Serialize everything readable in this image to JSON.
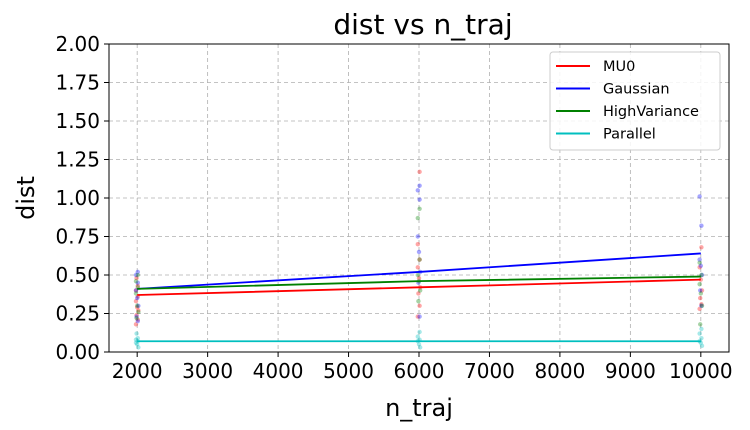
{
  "chart_data": {
    "type": "line",
    "title": "dist vs n_traj",
    "xlabel": "n_traj",
    "ylabel": "dist",
    "xlim": [
      1600,
      10400
    ],
    "ylim": [
      0,
      2.0
    ],
    "xticks": [
      2000,
      3000,
      4000,
      5000,
      6000,
      7000,
      8000,
      9000,
      10000
    ],
    "xtick_labels": [
      "2000",
      "3000",
      "4000",
      "5000",
      "6000",
      "7000",
      "8000",
      "9000",
      "10000"
    ],
    "yticks": [
      0,
      0.25,
      0.5,
      0.75,
      1.0,
      1.25,
      1.5,
      1.75,
      2.0
    ],
    "ytick_labels": [
      "0.00",
      "0.25",
      "0.50",
      "0.75",
      "1.00",
      "1.25",
      "1.50",
      "1.75",
      "2.00"
    ],
    "grid": true,
    "legend_position": "top-right",
    "x": [
      2000,
      6000,
      10000
    ],
    "series": [
      {
        "name": "MU0",
        "color": "#ff0000",
        "values": [
          0.37,
          0.42,
          0.47
        ],
        "scatter": [
          [
            2000,
            [
              0.18,
              0.21,
              0.24,
              0.27,
              0.29,
              0.33,
              0.36,
              0.4,
              0.43,
              0.48
            ]
          ],
          [
            6000,
            [
              0.23,
              0.3,
              0.38,
              0.42,
              0.48,
              0.55,
              0.6,
              0.7,
              1.17
            ]
          ],
          [
            10000,
            [
              0.28,
              0.31,
              0.35,
              0.4,
              0.47,
              0.55,
              0.68
            ]
          ]
        ]
      },
      {
        "name": "Gaussian",
        "color": "#0000ff",
        "values": [
          0.41,
          0.52,
          0.64
        ],
        "scatter": [
          [
            2000,
            [
              0.2,
              0.23,
              0.3,
              0.35,
              0.4,
              0.45,
              0.5,
              0.52
            ]
          ],
          [
            6000,
            [
              0.23,
              0.45,
              0.52,
              0.65,
              0.75,
              0.99,
              1.05,
              1.08
            ]
          ],
          [
            10000,
            [
              0.3,
              0.4,
              0.5,
              0.56,
              0.6,
              0.82,
              1.01
            ]
          ]
        ]
      },
      {
        "name": "HighVariance",
        "color": "#008000",
        "values": [
          0.41,
          0.46,
          0.49
        ],
        "scatter": [
          [
            2000,
            [
              0.22,
              0.26,
              0.3,
              0.38,
              0.42,
              0.46,
              0.5
            ]
          ],
          [
            6000,
            [
              0.33,
              0.4,
              0.46,
              0.5,
              0.6,
              0.87,
              0.93
            ]
          ],
          [
            10000,
            [
              0.18,
              0.3,
              0.38,
              0.44,
              0.5,
              0.58
            ]
          ]
        ]
      },
      {
        "name": "Parallel",
        "color": "#00bfbf",
        "values": [
          0.07,
          0.07,
          0.07
        ],
        "scatter": [
          [
            2000,
            [
              0.03,
              0.05,
              0.06,
              0.07,
              0.08,
              0.09,
              0.12
            ]
          ],
          [
            6000,
            [
              0.03,
              0.05,
              0.07,
              0.08,
              0.1,
              0.13
            ]
          ],
          [
            10000,
            [
              0.04,
              0.06,
              0.07,
              0.09,
              0.12,
              0.15
            ]
          ]
        ]
      }
    ]
  }
}
